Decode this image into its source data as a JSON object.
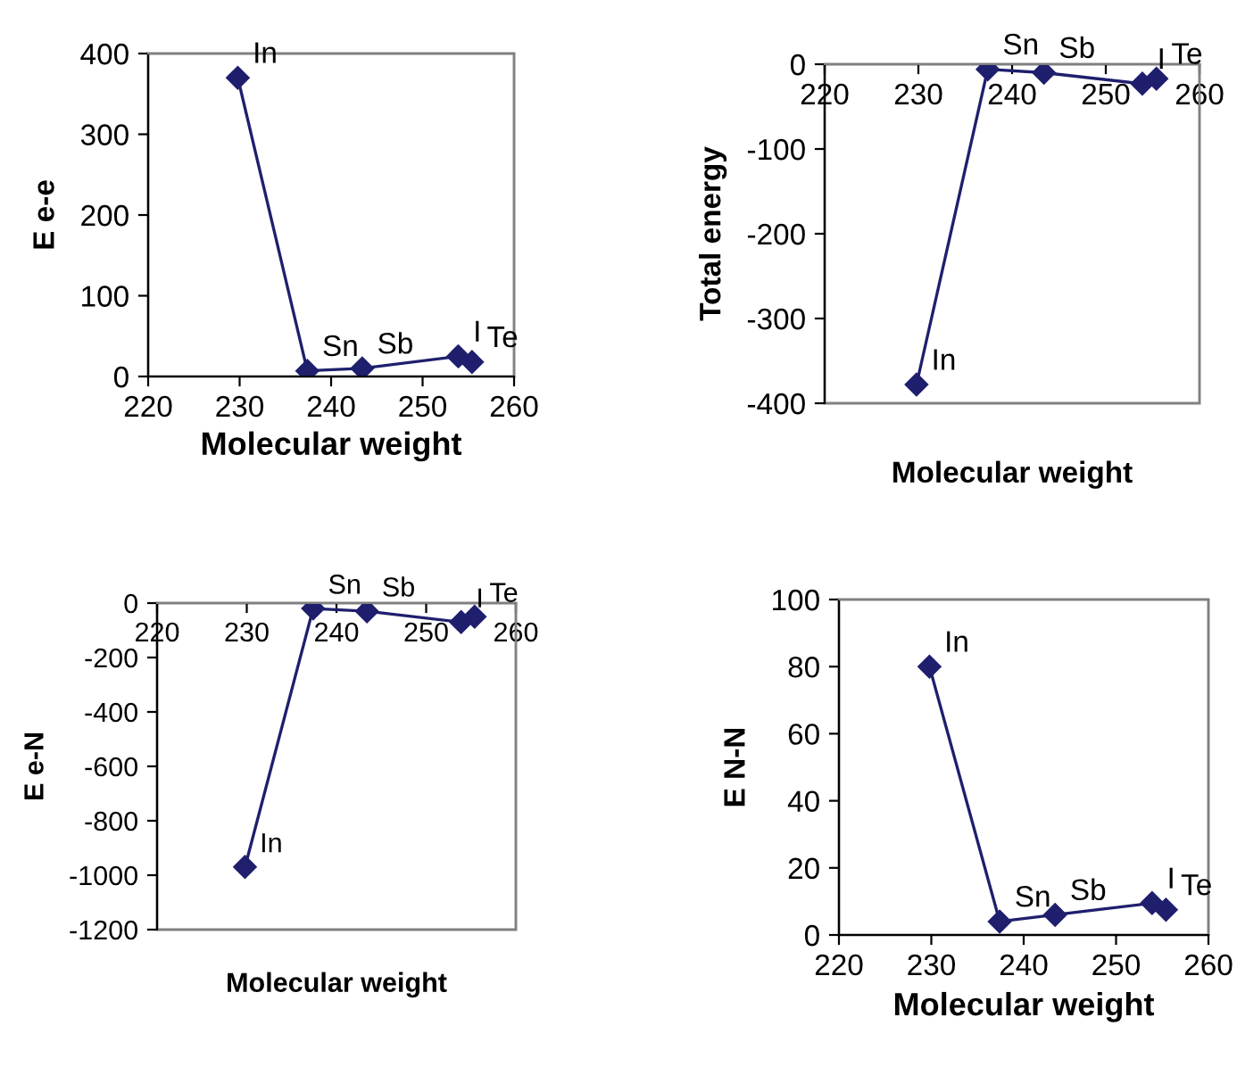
{
  "chart_data": [
    {
      "type": "line",
      "xlabel": "Molecular weight",
      "ylabel": "E e-e",
      "x": [
        229.8,
        237.4,
        243.4,
        253.9,
        255.4
      ],
      "series": [
        {
          "color": "#1f1f6e",
          "values": [
            370,
            7,
            10,
            25,
            18
          ]
        }
      ],
      "xlim": [
        220,
        260
      ],
      "xticks": [
        220,
        230,
        240,
        250,
        260
      ],
      "ylim": [
        0,
        400
      ],
      "yticks": [
        0,
        100,
        200,
        300,
        400
      ],
      "marker": "diamond",
      "grid": false,
      "annotations": [
        {
          "text": "In",
          "x": 229.8,
          "y": 370
        },
        {
          "text": "Sn",
          "x": 237.4,
          "y": 7
        },
        {
          "text": "Sb",
          "x": 243.4,
          "y": 10
        },
        {
          "text": "I",
          "x": 253.9,
          "y": 25
        },
        {
          "text": "Te",
          "x": 255.4,
          "y": 18
        }
      ]
    },
    {
      "type": "line",
      "xlabel": "Molecular weight",
      "ylabel": "Total energy",
      "x": [
        229.8,
        237.4,
        243.4,
        253.9,
        255.4
      ],
      "series": [
        {
          "color": "#1f1f6e",
          "values": [
            -378,
            -6,
            -10,
            -23,
            -17
          ]
        }
      ],
      "xlim": [
        220,
        260
      ],
      "xticks": [
        220,
        230,
        240,
        250,
        260
      ],
      "ylim": [
        -400,
        0
      ],
      "yticks": [
        -400,
        -300,
        -200,
        -100,
        0
      ],
      "marker": "diamond",
      "grid": false,
      "annotations": [
        {
          "text": "In",
          "x": 229.8,
          "y": -378
        },
        {
          "text": "Sn",
          "x": 237.4,
          "y": -6
        },
        {
          "text": "Sb",
          "x": 243.4,
          "y": -10
        },
        {
          "text": "I",
          "x": 253.9,
          "y": -23
        },
        {
          "text": "Te",
          "x": 255.4,
          "y": -17
        }
      ]
    },
    {
      "type": "line",
      "xlabel": "Molecular weight",
      "ylabel": "E e-N",
      "x": [
        229.8,
        237.4,
        243.4,
        253.9,
        255.4
      ],
      "series": [
        {
          "color": "#1f1f6e",
          "values": [
            -970,
            -20,
            -30,
            -70,
            -50
          ]
        }
      ],
      "xlim": [
        220,
        260
      ],
      "xticks": [
        220,
        230,
        240,
        250,
        260
      ],
      "ylim": [
        -1200,
        0
      ],
      "yticks": [
        -1200,
        -1000,
        -800,
        -600,
        -400,
        -200,
        0
      ],
      "marker": "diamond",
      "grid": false,
      "annotations": [
        {
          "text": "In",
          "x": 229.8,
          "y": -970
        },
        {
          "text": "Sn",
          "x": 237.4,
          "y": -20
        },
        {
          "text": "Sb",
          "x": 243.4,
          "y": -30
        },
        {
          "text": "I",
          "x": 253.9,
          "y": -70
        },
        {
          "text": "Te",
          "x": 255.4,
          "y": -50
        }
      ]
    },
    {
      "type": "line",
      "xlabel": "Molecular weight",
      "ylabel": "E N-N",
      "x": [
        229.8,
        237.4,
        243.4,
        253.9,
        255.4
      ],
      "series": [
        {
          "color": "#1f1f6e",
          "values": [
            80,
            4,
            6,
            9.5,
            7.5
          ]
        }
      ],
      "xlim": [
        220,
        260
      ],
      "xticks": [
        220,
        230,
        240,
        250,
        260
      ],
      "ylim": [
        0,
        100
      ],
      "yticks": [
        0,
        20,
        40,
        60,
        80,
        100
      ],
      "marker": "diamond",
      "grid": false,
      "annotations": [
        {
          "text": "In",
          "x": 229.8,
          "y": 80
        },
        {
          "text": "Sn",
          "x": 237.4,
          "y": 4
        },
        {
          "text": "Sb",
          "x": 243.4,
          "y": 6
        },
        {
          "text": "I",
          "x": 253.9,
          "y": 9.5
        },
        {
          "text": "Te",
          "x": 255.4,
          "y": 7.5
        }
      ]
    }
  ]
}
